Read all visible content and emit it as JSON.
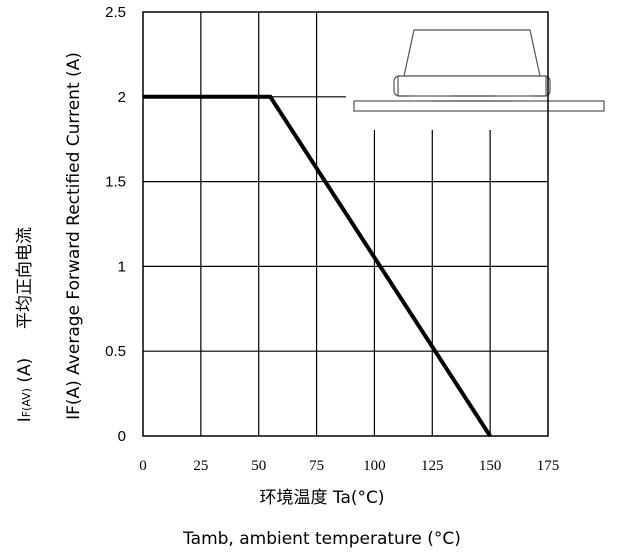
{
  "chart_data": {
    "type": "line",
    "title": "",
    "xlabel": "环境温度 Ta(°C)",
    "xlabel_en": "Tamb, ambient temperature (°C)",
    "ylabel_cn": "平均正向电流",
    "ylabel_sym_main": "I",
    "ylabel_sym_sub": "F(AV)",
    "ylabel_sym_unit": " (A)",
    "ylabel_en": "IF(A)  Average Forward Rectified Current (A)",
    "xlim": [
      0,
      175
    ],
    "ylim": [
      0,
      2.5
    ],
    "x_ticks": [
      "0",
      "25",
      "50",
      "75",
      "100",
      "125",
      "150",
      "175"
    ],
    "y_ticks": [
      "0",
      "0.5",
      "1",
      "1.5",
      "2",
      "2.5"
    ],
    "grid": true,
    "series": [
      {
        "x": [
          0,
          55,
          150
        ],
        "y": [
          2,
          2,
          0
        ],
        "color": "#000000"
      }
    ]
  }
}
